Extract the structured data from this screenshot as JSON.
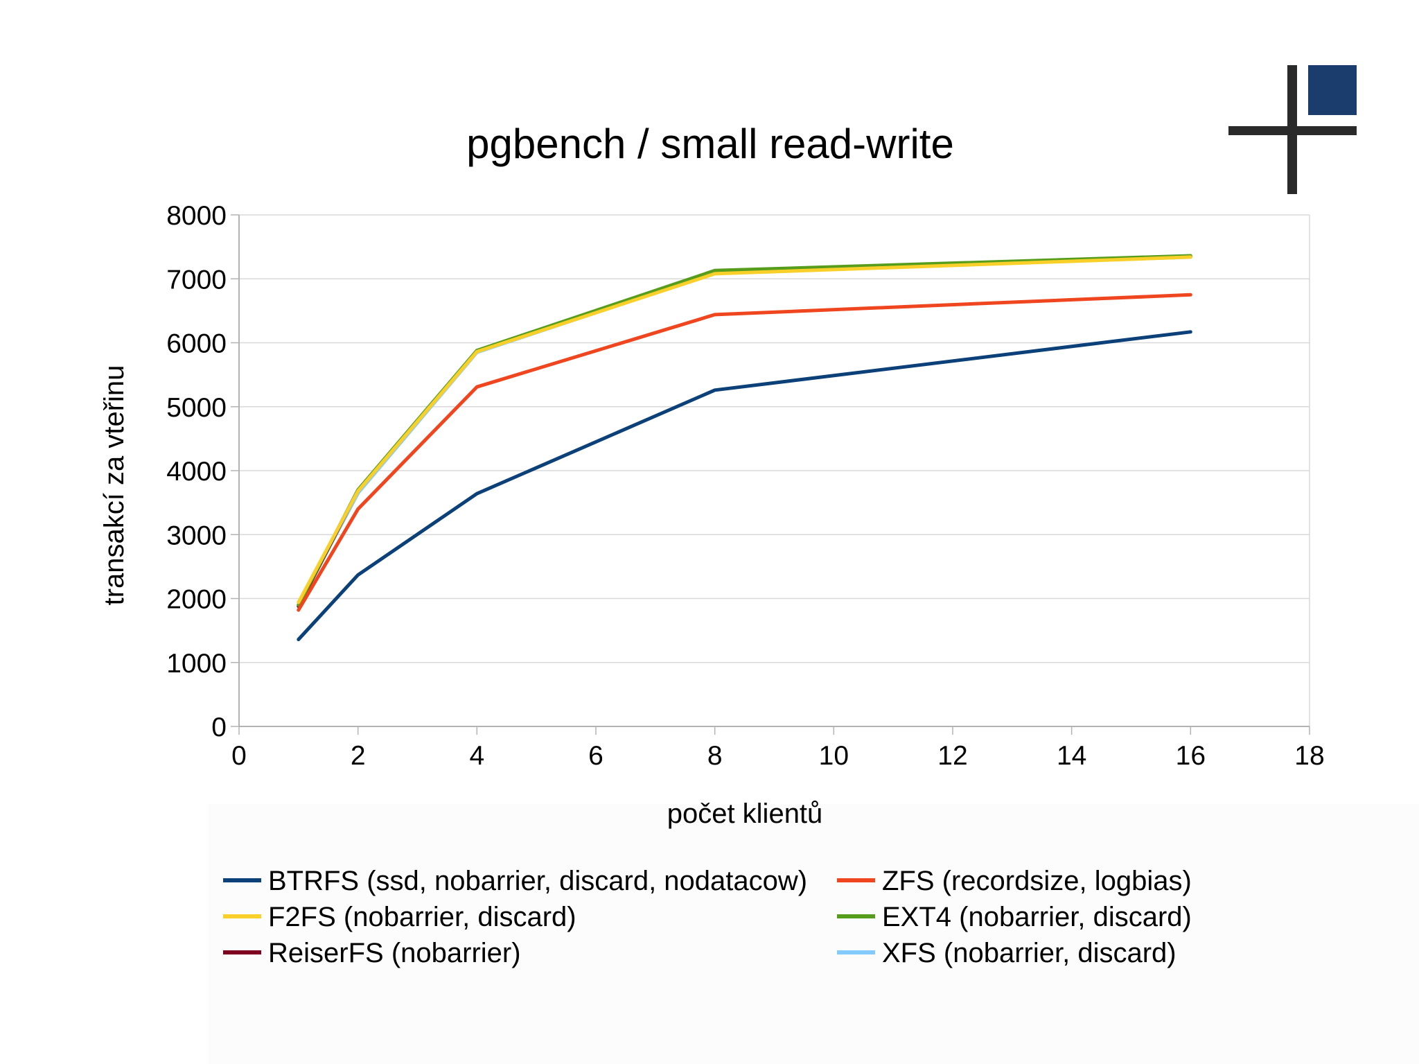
{
  "chart_data": {
    "type": "line",
    "title": "pgbench / small read-write",
    "xlabel": "počet klientů",
    "ylabel": "transakcí za vteřinu",
    "xlim": [
      0,
      18
    ],
    "ylim": [
      0,
      8000
    ],
    "xticks": [
      0,
      2,
      4,
      6,
      8,
      10,
      12,
      14,
      16,
      18
    ],
    "yticks": [
      0,
      1000,
      2000,
      3000,
      4000,
      5000,
      6000,
      7000,
      8000
    ],
    "grid": true,
    "legend_position": "bottom",
    "x": [
      1,
      2,
      4,
      8,
      16
    ],
    "series": [
      {
        "name": "BTRFS (ssd, nobarrier, discard, nodatacow)",
        "color": "#0b4079",
        "values": [
          1360,
          2370,
          3640,
          5260,
          6170
        ]
      },
      {
        "name": "ZFS (recordsize, logbias)",
        "color": "#f0461f",
        "values": [
          1820,
          3400,
          5310,
          6440,
          6750
        ]
      },
      {
        "name": "F2FS (nobarrier, discard)",
        "color": "#f9d02a",
        "values": [
          1940,
          3680,
          5860,
          7080,
          7340
        ]
      },
      {
        "name": "EXT4 (nobarrier, discard)",
        "color": "#579d1c",
        "values": [
          1900,
          3700,
          5880,
          7130,
          7360
        ]
      },
      {
        "name": "ReiserFS (nobarrier)",
        "color": "#7e0021",
        "values": [
          1880,
          3690,
          5870,
          7110,
          7350
        ]
      },
      {
        "name": "XFS (nobarrier, discard)",
        "color": "#83caff",
        "values": [
          1890,
          3650,
          5850,
          7090,
          7340
        ]
      }
    ]
  },
  "logo": {
    "name": "logo-mark",
    "square_color": "#1b3d6d",
    "cross_color": "#2a2a2a"
  }
}
